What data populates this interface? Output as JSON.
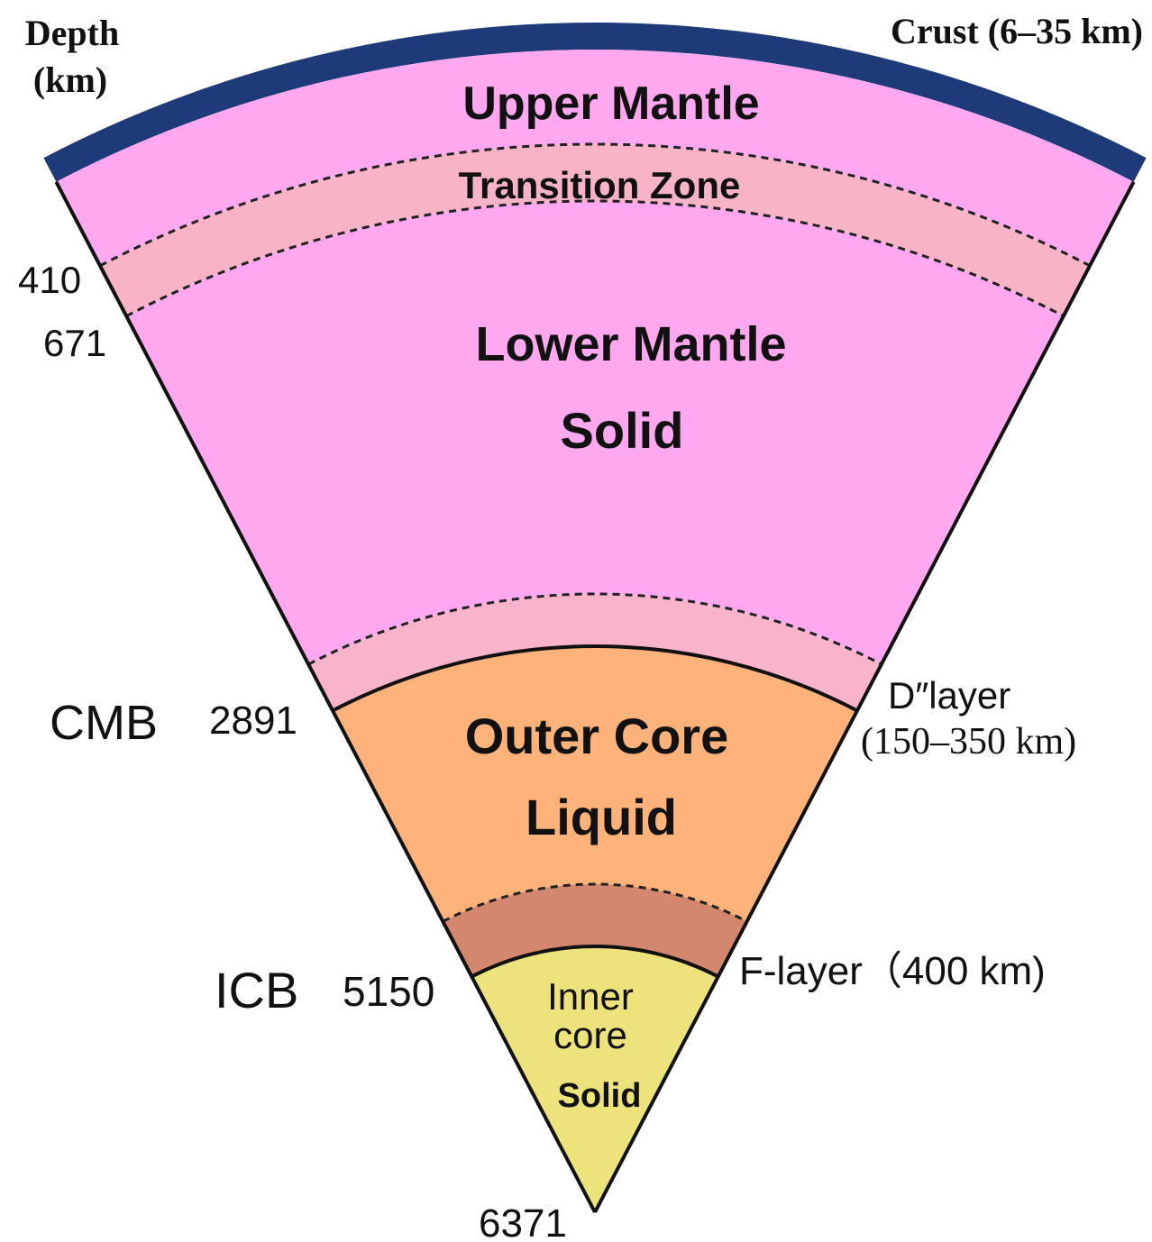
{
  "labels": {
    "depth": [
      "Depth",
      "(km)"
    ],
    "crust": "Crust (6–35 km)",
    "upper_mantle": "Upper  Mantle",
    "transition_zone": "Transition Zone",
    "lower_mantle": [
      "Lower  Mantle",
      "Solid"
    ],
    "outer_core": [
      "Outer Core",
      "Liquid"
    ],
    "inner_core": [
      "Inner",
      "core",
      "Solid"
    ],
    "d410": "410",
    "d671": "671",
    "cmb": "CMB",
    "cmb_depth": "2891",
    "d_layer": [
      "D″layer",
      "(150–350 km)"
    ],
    "icb": "ICB",
    "icb_depth": "5150",
    "f_layer": "F-layer（400 km)",
    "center": "6371"
  }
}
